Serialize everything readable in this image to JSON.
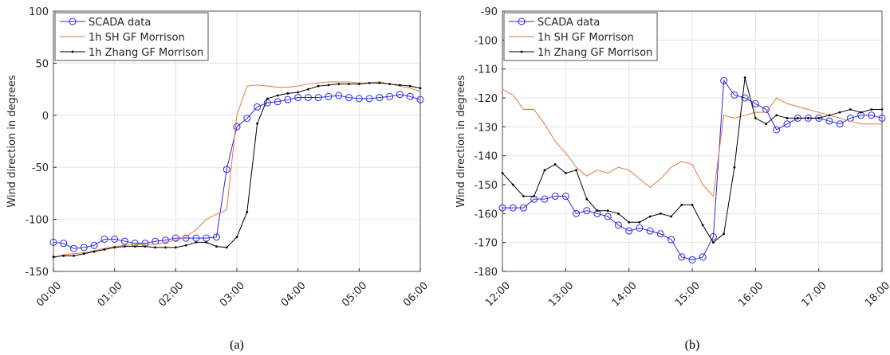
{
  "chart_data": [
    {
      "type": "line",
      "caption": "(a)",
      "y_label": "Wind direction in degrees",
      "grid": true,
      "legend": "upper-left",
      "x": [
        0,
        10,
        20,
        30,
        40,
        50,
        60,
        70,
        80,
        90,
        100,
        110,
        120,
        130,
        140,
        150,
        160,
        170,
        180,
        190,
        200,
        210,
        220,
        230,
        240,
        250,
        260,
        270,
        280,
        290,
        300,
        310,
        320,
        330,
        340,
        350,
        360
      ],
      "xlim": [
        0,
        360
      ],
      "xticks": [
        {
          "value": 0,
          "label": "00:00"
        },
        {
          "value": 60,
          "label": "01:00"
        },
        {
          "value": 120,
          "label": "02:00"
        },
        {
          "value": 180,
          "label": "03:00"
        },
        {
          "value": 240,
          "label": "04:00"
        },
        {
          "value": 300,
          "label": "05:00"
        },
        {
          "value": 360,
          "label": "06:00"
        }
      ],
      "ylim": [
        -150,
        100
      ],
      "yticks": [
        -150,
        -100,
        -50,
        0,
        50,
        100
      ],
      "series": [
        {
          "name": "SCADA data",
          "color": "#2a2ae8",
          "marker": "circle",
          "values": [
            -122,
            -123,
            -128,
            -127,
            -125,
            -119,
            -119,
            -121,
            -123,
            -123,
            -121,
            -120,
            -118,
            -118,
            -118,
            -118,
            -117,
            -52,
            -11,
            -3,
            8,
            12,
            13,
            15,
            17,
            17,
            17,
            18,
            19,
            17,
            16,
            16,
            17,
            18,
            20,
            18,
            15
          ]
        },
        {
          "name": "1h SH GF Morrison",
          "color": "#e07a3c",
          "marker": "none",
          "values": [
            -137,
            -134,
            -133,
            -132,
            -130,
            -128,
            -126,
            -125,
            -124,
            -124,
            -124,
            -122,
            -120,
            -117,
            -110,
            -100,
            -95,
            -91,
            0,
            28,
            29,
            28,
            27,
            27,
            28,
            30,
            31,
            32,
            32,
            32,
            31,
            31,
            32,
            30,
            28,
            26,
            23
          ]
        },
        {
          "name": "1h Zhang GF Morrison",
          "color": "#000000",
          "marker": "dot",
          "values": [
            -136,
            -135,
            -135,
            -133,
            -131,
            -129,
            -127,
            -126,
            -126,
            -126,
            -127,
            -127,
            -127,
            -125,
            -122,
            -122,
            -126,
            -127,
            -117,
            -93,
            -8,
            16,
            19,
            21,
            22,
            25,
            28,
            29,
            30,
            30,
            30,
            31,
            31,
            30,
            29,
            28,
            26
          ]
        }
      ]
    },
    {
      "type": "line",
      "caption": "(b)",
      "y_label": "Wind direction in degrees",
      "grid": true,
      "legend": "upper-left",
      "x": [
        720,
        730,
        740,
        750,
        760,
        770,
        780,
        790,
        800,
        810,
        820,
        830,
        840,
        850,
        860,
        870,
        880,
        890,
        900,
        910,
        920,
        930,
        940,
        950,
        960,
        970,
        980,
        990,
        1000,
        1010,
        1020,
        1030,
        1040,
        1050,
        1060,
        1070,
        1080
      ],
      "xlim": [
        720,
        1080
      ],
      "xticks": [
        {
          "value": 720,
          "label": "12:00"
        },
        {
          "value": 780,
          "label": "13:00"
        },
        {
          "value": 840,
          "label": "14:00"
        },
        {
          "value": 900,
          "label": "15:00"
        },
        {
          "value": 960,
          "label": "16:00"
        },
        {
          "value": 1020,
          "label": "17:00"
        },
        {
          "value": 1080,
          "label": "18:00"
        }
      ],
      "ylim": [
        -180,
        -90
      ],
      "yticks": [
        -180,
        -170,
        -160,
        -150,
        -140,
        -130,
        -120,
        -110,
        -100,
        -90
      ],
      "series": [
        {
          "name": "SCADA data",
          "color": "#2a2ae8",
          "marker": "circle",
          "values": [
            -158,
            -158,
            -158,
            -155,
            -155,
            -154,
            -154,
            -160,
            -159,
            -160,
            -161,
            -164,
            -166,
            -165,
            -166,
            -167,
            -169,
            -175,
            -176,
            -175,
            -168,
            -114,
            -119,
            -120,
            -122,
            -124,
            -131,
            -129,
            -127,
            -127,
            -127,
            -128,
            -129,
            -127,
            -126,
            -126,
            -127
          ]
        },
        {
          "name": "1h SH GF Morrison",
          "color": "#e07a3c",
          "marker": "none",
          "values": [
            -117,
            -119,
            -124,
            -124,
            -129,
            -135,
            -139,
            -144,
            -147,
            -145,
            -146,
            -144,
            -145,
            -148,
            -151,
            -148,
            -144,
            -142,
            -143,
            -150,
            -154,
            -126,
            -127,
            -126,
            -125,
            -125,
            -120,
            -122,
            -123,
            -124,
            -125,
            -126,
            -127,
            -128,
            -129,
            -129,
            -129
          ]
        },
        {
          "name": "1h Zhang GF Morrison",
          "color": "#000000",
          "marker": "dot",
          "values": [
            -146,
            -150,
            -154,
            -154,
            -145,
            -143,
            -146,
            -145,
            -155,
            -159,
            -159,
            -160,
            -163,
            -163,
            -161,
            -160,
            -161,
            -157,
            -157,
            -164,
            -170,
            -167,
            -144,
            -113,
            -127,
            -129,
            -126,
            -127,
            -127,
            -127,
            -127,
            -126,
            -125,
            -124,
            -125,
            -124,
            -124
          ]
        }
      ]
    }
  ]
}
